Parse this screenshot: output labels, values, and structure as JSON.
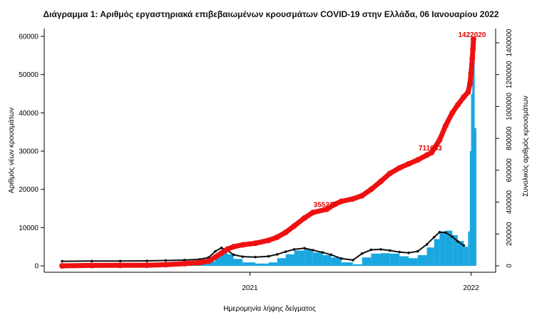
{
  "chart_data": {
    "type": "bar",
    "title": "Διάγραμμα 1: Αριθμός εργαστηριακά επιβεβαιωμένων κρουσμάτων COVID-19 στην Ελλάδα, 06 Ιανουαρίου 2022",
    "xlabel": "Ημερομηνία λήψης δείγματος",
    "ylabel": "Αριθμός νέων κρουσμάτων",
    "ylabel_right": "Συνολικός αριθμός κρουσμάτων",
    "x_ticks": [
      "2021",
      "2022"
    ],
    "y_ticks": [
      0,
      10000,
      20000,
      30000,
      40000,
      50000,
      60000
    ],
    "y2_ticks": [
      0,
      200000,
      400000,
      600000,
      800000,
      1000000,
      1200000,
      1400000
    ],
    "ylim": [
      0,
      60000
    ],
    "y2lim": [
      0,
      1400000
    ],
    "grid": false,
    "colors": {
      "daily_bars": "#1aa7e0",
      "moving_average": "#111111",
      "cumulative": "#ee1111"
    },
    "annotations": [
      {
        "label": "355226",
        "date": "2021-05-08",
        "value": 355226
      },
      {
        "label": "711653",
        "date": "2021-10-28",
        "value": 711653
      },
      {
        "label": "1422020",
        "date": "2022-01-05",
        "value": 1422020
      }
    ],
    "series": [
      {
        "kind": "bars",
        "unit": "daily new cases (left axis)",
        "points": [
          [
            "2020-02-26",
            0
          ],
          [
            "2020-04-15",
            20
          ],
          [
            "2020-06-01",
            10
          ],
          [
            "2020-07-15",
            30
          ],
          [
            "2020-08-15",
            200
          ],
          [
            "2020-09-15",
            300
          ],
          [
            "2020-10-10",
            500
          ],
          [
            "2020-10-25",
            1200
          ],
          [
            "2020-11-05",
            3000
          ],
          [
            "2020-11-15",
            4300
          ],
          [
            "2020-11-25",
            3000
          ],
          [
            "2020-12-05",
            1800
          ],
          [
            "2020-12-20",
            900
          ],
          [
            "2021-01-10",
            600
          ],
          [
            "2021-02-01",
            900
          ],
          [
            "2021-02-15",
            2000
          ],
          [
            "2021-03-01",
            3000
          ],
          [
            "2021-03-15",
            4000
          ],
          [
            "2021-04-01",
            4300
          ],
          [
            "2021-04-15",
            3500
          ],
          [
            "2021-05-01",
            2800
          ],
          [
            "2021-05-15",
            2200
          ],
          [
            "2021-06-01",
            900
          ],
          [
            "2021-06-20",
            400
          ],
          [
            "2021-07-05",
            2200
          ],
          [
            "2021-07-20",
            3200
          ],
          [
            "2021-08-05",
            3300
          ],
          [
            "2021-08-20",
            3200
          ],
          [
            "2021-09-05",
            2500
          ],
          [
            "2021-09-20",
            2000
          ],
          [
            "2021-10-05",
            2800
          ],
          [
            "2021-10-20",
            4800
          ],
          [
            "2021-11-01",
            7000
          ],
          [
            "2021-11-10",
            9000
          ],
          [
            "2021-11-20",
            9200
          ],
          [
            "2021-12-01",
            8000
          ],
          [
            "2021-12-10",
            6500
          ],
          [
            "2021-12-20",
            5000
          ],
          [
            "2021-12-27",
            9000
          ],
          [
            "2021-12-30",
            30000
          ],
          [
            "2022-01-01",
            45000
          ],
          [
            "2022-01-03",
            50000
          ],
          [
            "2022-01-04",
            55000
          ],
          [
            "2022-01-05",
            36000
          ]
        ]
      },
      {
        "kind": "line",
        "unit": "daily moving average (left axis)",
        "points": [
          [
            "2020-02-26",
            1200
          ],
          [
            "2020-04-15",
            1250
          ],
          [
            "2020-06-01",
            1250
          ],
          [
            "2020-07-15",
            1300
          ],
          [
            "2020-08-15",
            1400
          ],
          [
            "2020-09-15",
            1500
          ],
          [
            "2020-10-10",
            1700
          ],
          [
            "2020-10-25",
            2200
          ],
          [
            "2020-11-05",
            3800
          ],
          [
            "2020-11-15",
            4700
          ],
          [
            "2020-11-25",
            4000
          ],
          [
            "2020-12-05",
            2900
          ],
          [
            "2020-12-20",
            2400
          ],
          [
            "2021-01-10",
            2300
          ],
          [
            "2021-02-01",
            2500
          ],
          [
            "2021-02-15",
            3000
          ],
          [
            "2021-03-01",
            3700
          ],
          [
            "2021-03-15",
            4300
          ],
          [
            "2021-04-01",
            4600
          ],
          [
            "2021-04-15",
            4100
          ],
          [
            "2021-05-01",
            3500
          ],
          [
            "2021-05-15",
            2900
          ],
          [
            "2021-06-01",
            1900
          ],
          [
            "2021-06-20",
            1500
          ],
          [
            "2021-07-05",
            3200
          ],
          [
            "2021-07-20",
            4200
          ],
          [
            "2021-08-05",
            4300
          ],
          [
            "2021-08-20",
            4000
          ],
          [
            "2021-09-05",
            3600
          ],
          [
            "2021-09-20",
            3400
          ],
          [
            "2021-10-05",
            3800
          ],
          [
            "2021-10-20",
            5600
          ],
          [
            "2021-11-01",
            7500
          ],
          [
            "2021-11-10",
            8800
          ],
          [
            "2021-11-20",
            8700
          ],
          [
            "2021-12-01",
            7600
          ],
          [
            "2021-12-10",
            6400
          ],
          [
            "2021-12-20",
            5300
          ]
        ]
      },
      {
        "kind": "line",
        "unit": "cumulative cases (right axis)",
        "points": [
          [
            "2020-02-26",
            0
          ],
          [
            "2020-04-15",
            2500
          ],
          [
            "2020-06-01",
            3000
          ],
          [
            "2020-07-15",
            4000
          ],
          [
            "2020-08-15",
            7000
          ],
          [
            "2020-09-15",
            14000
          ],
          [
            "2020-10-10",
            20000
          ],
          [
            "2020-10-25",
            30000
          ],
          [
            "2020-11-05",
            55000
          ],
          [
            "2020-11-15",
            80000
          ],
          [
            "2020-11-25",
            105000
          ],
          [
            "2020-12-05",
            120000
          ],
          [
            "2020-12-20",
            132000
          ],
          [
            "2021-01-10",
            142000
          ],
          [
            "2021-02-01",
            160000
          ],
          [
            "2021-02-15",
            180000
          ],
          [
            "2021-03-01",
            210000
          ],
          [
            "2021-03-15",
            250000
          ],
          [
            "2021-04-01",
            300000
          ],
          [
            "2021-04-15",
            335000
          ],
          [
            "2021-05-08",
            355226
          ],
          [
            "2021-05-20",
            385000
          ],
          [
            "2021-06-01",
            405000
          ],
          [
            "2021-06-20",
            420000
          ],
          [
            "2021-07-05",
            440000
          ],
          [
            "2021-07-20",
            480000
          ],
          [
            "2021-08-05",
            530000
          ],
          [
            "2021-08-20",
            580000
          ],
          [
            "2021-09-05",
            615000
          ],
          [
            "2021-09-20",
            640000
          ],
          [
            "2021-10-05",
            665000
          ],
          [
            "2021-10-20",
            695000
          ],
          [
            "2021-10-28",
            711653
          ],
          [
            "2021-11-10",
            790000
          ],
          [
            "2021-11-20",
            880000
          ],
          [
            "2021-12-01",
            960000
          ],
          [
            "2021-12-10",
            1010000
          ],
          [
            "2021-12-20",
            1060000
          ],
          [
            "2021-12-27",
            1090000
          ],
          [
            "2021-12-30",
            1140000
          ],
          [
            "2022-01-01",
            1210000
          ],
          [
            "2022-01-03",
            1300000
          ],
          [
            "2022-01-04",
            1360000
          ],
          [
            "2022-01-05",
            1422020
          ]
        ]
      }
    ]
  }
}
